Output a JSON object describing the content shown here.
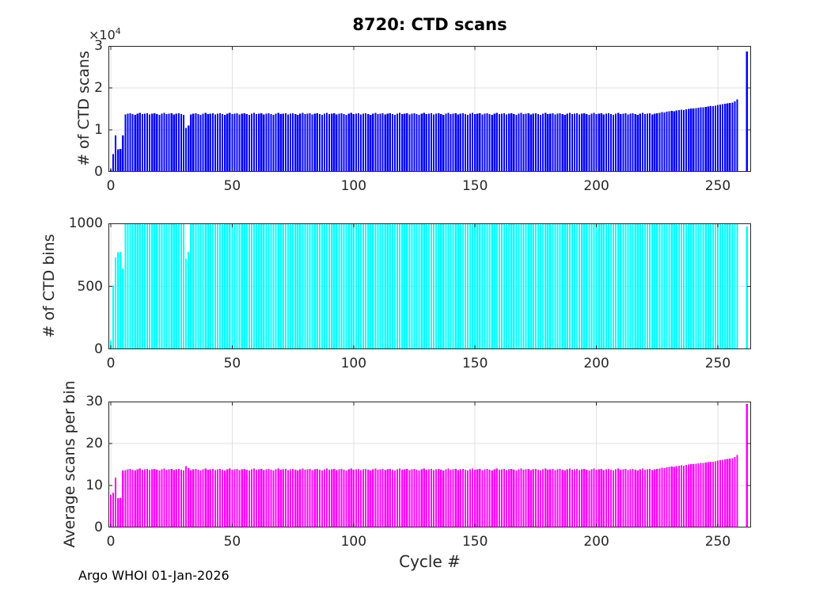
{
  "title": "8720: CTD scans",
  "footer": "Argo WHOI 01-Jan-2026",
  "xlabel": "Cycle #",
  "exponent": {
    "base": "×10",
    "power": "4"
  },
  "colors": {
    "axis": "#262626",
    "grid": "#e0e0e0",
    "background": "#ffffff"
  },
  "chart_data": [
    {
      "id": "ctd-scans",
      "type": "bar",
      "title": "8720: CTD scans",
      "ylabel": "# of CTD scans",
      "color": "#0000ff",
      "ylim": [
        0,
        30000
      ],
      "yticks": [
        0,
        10000,
        20000,
        30000
      ],
      "ytick_labels": [
        "0",
        "1",
        "2",
        "3"
      ],
      "y_exponent": "×10^4",
      "xticks": [
        0,
        50,
        100,
        150,
        200,
        250
      ],
      "xtick_labels": [
        "0",
        "50",
        "100",
        "150",
        "200",
        "250"
      ],
      "xlim": [
        -1,
        264
      ],
      "x_start_cycle": 0,
      "grid": true,
      "values": [
        550,
        4200,
        8700,
        5400,
        5500,
        8700,
        13700,
        13900,
        14000,
        13800,
        13600,
        13900,
        14100,
        13750,
        13850,
        13950,
        13700,
        13900,
        14000,
        13800,
        13600,
        13900,
        14100,
        13750,
        13850,
        13950,
        13700,
        13900,
        14000,
        13800,
        13600,
        10500,
        11000,
        13700,
        13900,
        14000,
        13800,
        13600,
        13900,
        14100,
        13750,
        13850,
        13950,
        13700,
        13900,
        14000,
        13800,
        13600,
        13900,
        14100,
        13750,
        13850,
        13950,
        13700,
        13900,
        14000,
        13800,
        13600,
        13900,
        14100,
        13750,
        13850,
        13950,
        13700,
        13900,
        14000,
        13800,
        13600,
        13900,
        14100,
        13750,
        13850,
        13950,
        13700,
        13900,
        14000,
        13800,
        13600,
        13900,
        14100,
        13750,
        13850,
        13950,
        13700,
        13900,
        14000,
        13800,
        13600,
        13900,
        14100,
        13750,
        13850,
        13950,
        13700,
        13900,
        14000,
        13800,
        13600,
        13900,
        14100,
        13750,
        13850,
        13950,
        13700,
        13900,
        14000,
        13800,
        13600,
        13900,
        14100,
        13750,
        13850,
        13950,
        13700,
        13900,
        14000,
        13800,
        13600,
        13900,
        14100,
        13750,
        13850,
        13950,
        13700,
        13900,
        14000,
        13800,
        13600,
        13900,
        14100,
        13750,
        13850,
        13950,
        13700,
        13900,
        14000,
        13800,
        13600,
        13900,
        14100,
        13750,
        13850,
        13950,
        13700,
        13900,
        14000,
        13800,
        13600,
        13900,
        14100,
        13750,
        13850,
        13950,
        13700,
        13900,
        14000,
        13800,
        13600,
        13900,
        14100,
        13750,
        13850,
        13950,
        13700,
        13900,
        14000,
        13800,
        13600,
        13900,
        14100,
        13750,
        13850,
        13950,
        13700,
        13900,
        14000,
        13800,
        13600,
        13900,
        14100,
        13750,
        13850,
        13950,
        13700,
        13900,
        14000,
        13800,
        13600,
        13900,
        14100,
        13750,
        13850,
        13950,
        13700,
        13900,
        14000,
        13800,
        13600,
        13900,
        14100,
        13750,
        13850,
        13950,
        13700,
        13900,
        14000,
        13800,
        13600,
        13900,
        14100,
        13750,
        13850,
        13950,
        13700,
        13900,
        14000,
        13800,
        13600,
        13900,
        14100,
        13750,
        13850,
        13950,
        13700,
        13900,
        14000,
        14100,
        14200,
        14150,
        14300,
        14400,
        14500,
        14450,
        14600,
        14700,
        14800,
        14750,
        14900,
        15000,
        15100,
        15050,
        15200,
        15300,
        15400,
        15350,
        15500,
        15600,
        15700,
        15650,
        15800,
        15900,
        16000,
        16100,
        16200,
        16300,
        16400,
        16500,
        16800,
        17300,
        0,
        0,
        0,
        28700
      ]
    },
    {
      "id": "ctd-bins",
      "type": "bar",
      "ylabel": "# of CTD bins",
      "color": "#00ffff",
      "ylim": [
        0,
        1000
      ],
      "yticks": [
        0,
        500,
        1000
      ],
      "ytick_labels": [
        "0",
        "500",
        "1000"
      ],
      "xticks": [
        0,
        50,
        100,
        150,
        200,
        250
      ],
      "xtick_labels": [
        "0",
        "50",
        "100",
        "150",
        "200",
        "250"
      ],
      "xlim": [
        -1,
        264
      ],
      "x_start_cycle": 0,
      "grid": true,
      "values": [
        70,
        505,
        730,
        770,
        775,
        640,
        1000,
        1000,
        1000,
        1000,
        1000,
        1000,
        1000,
        1000,
        1000,
        1000,
        1000,
        1000,
        1000,
        1000,
        1000,
        1000,
        1000,
        1000,
        1000,
        1000,
        1000,
        1000,
        1000,
        1000,
        1000,
        720,
        775,
        1000,
        1000,
        1000,
        1000,
        1000,
        1000,
        1000,
        1000,
        1000,
        1000,
        1000,
        1000,
        1000,
        1000,
        1000,
        1000,
        1000,
        1000,
        1000,
        1000,
        1000,
        1000,
        1000,
        1000,
        1000,
        1000,
        1000,
        1000,
        1000,
        1000,
        1000,
        1000,
        1000,
        1000,
        1000,
        1000,
        1000,
        1000,
        1000,
        1000,
        1000,
        1000,
        1000,
        1000,
        1000,
        1000,
        1000,
        1000,
        1000,
        1000,
        1000,
        1000,
        1000,
        1000,
        1000,
        1000,
        1000,
        1000,
        1000,
        1000,
        1000,
        1000,
        1000,
        1000,
        1000,
        1000,
        1000,
        1000,
        1000,
        1000,
        1000,
        1000,
        1000,
        1000,
        1000,
        1000,
        1000,
        1000,
        1000,
        1000,
        1000,
        1000,
        1000,
        1000,
        1000,
        1000,
        1000,
        1000,
        1000,
        1000,
        1000,
        1000,
        1000,
        1000,
        1000,
        1000,
        1000,
        1000,
        1000,
        1000,
        1000,
        1000,
        1000,
        1000,
        1000,
        1000,
        1000,
        1000,
        1000,
        1000,
        1000,
        1000,
        1000,
        1000,
        1000,
        1000,
        1000,
        1000,
        1000,
        1000,
        1000,
        1000,
        1000,
        1000,
        1000,
        1000,
        1000,
        1000,
        1000,
        1000,
        1000,
        1000,
        1000,
        1000,
        1000,
        1000,
        1000,
        1000,
        1000,
        1000,
        1000,
        1000,
        1000,
        1000,
        1000,
        1000,
        1000,
        1000,
        1000,
        1000,
        1000,
        1000,
        1000,
        1000,
        1000,
        1000,
        1000,
        1000,
        1000,
        1000,
        1000,
        1000,
        1000,
        1000,
        1000,
        1000,
        1000,
        1000,
        1000,
        1000,
        1000,
        1000,
        1000,
        1000,
        1000,
        1000,
        1000,
        1000,
        1000,
        1000,
        1000,
        1000,
        1000,
        1000,
        1000,
        1000,
        1000,
        1000,
        1000,
        1000,
        1000,
        1000,
        1000,
        1000,
        1000,
        1000,
        1000,
        1000,
        1000,
        1000,
        1000,
        1000,
        1000,
        1000,
        1000,
        1000,
        1000,
        1000,
        1000,
        1000,
        1000,
        1000,
        1000,
        1000,
        1000,
        1000,
        1000,
        1000,
        1000,
        1000,
        1000,
        1000,
        1000,
        1000,
        1000,
        1000,
        0,
        0,
        0,
        975
      ]
    },
    {
      "id": "avg-scans-per-bin",
      "type": "bar",
      "ylabel": "Average scans per bin",
      "color": "#ff00ff",
      "ylim": [
        0,
        30
      ],
      "yticks": [
        0,
        10,
        20,
        30
      ],
      "ytick_labels": [
        "0",
        "10",
        "20",
        "30"
      ],
      "xticks": [
        0,
        50,
        100,
        150,
        200,
        250
      ],
      "xtick_labels": [
        "0",
        "50",
        "100",
        "150",
        "200",
        "250"
      ],
      "xlim": [
        -1,
        264
      ],
      "x_start_cycle": 0,
      "grid": true,
      "xlabel": "Cycle #",
      "derived": true,
      "values_formula": "scans_divided_by_bins",
      "values": []
    }
  ]
}
